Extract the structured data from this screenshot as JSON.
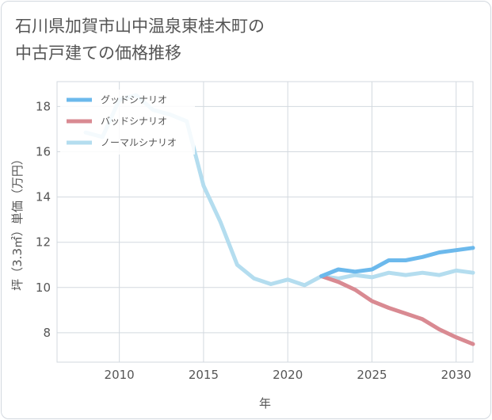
{
  "title_lines": [
    "石川県加賀市山中温泉東桂木町の",
    "中古戸建ての価格推移"
  ],
  "chart_data": {
    "type": "line",
    "xlabel": "年",
    "ylabel": "坪（3.3㎡）単価（万円）",
    "xlim": [
      2006.3,
      2031
    ],
    "ylim": [
      6.7,
      19.1
    ],
    "x_ticks": [
      2010,
      2015,
      2020,
      2025,
      2030
    ],
    "y_ticks": [
      8,
      10,
      12,
      14,
      16,
      18
    ],
    "grid": true,
    "legend_position": "top-left",
    "series": [
      {
        "name": "グッドシナリオ",
        "color": "#6cb9ec",
        "x": [
          2022,
          2023,
          2024,
          2025,
          2026,
          2027,
          2028,
          2029,
          2030,
          2031
        ],
        "y": [
          10.5,
          10.8,
          10.7,
          10.8,
          11.2,
          11.2,
          11.35,
          11.55,
          11.65,
          11.75
        ]
      },
      {
        "name": "バッドシナリオ",
        "color": "#d98a92",
        "x": [
          2022,
          2023,
          2024,
          2025,
          2026,
          2027,
          2028,
          2029,
          2030,
          2031
        ],
        "y": [
          10.5,
          10.25,
          9.9,
          9.4,
          9.1,
          8.85,
          8.6,
          8.15,
          7.8,
          7.5
        ]
      },
      {
        "name": "ノーマルシナリオ",
        "color": "#b4ddef",
        "x": [
          2008,
          2009,
          2010,
          2011,
          2012,
          2013,
          2014,
          2015,
          2016,
          2017,
          2018,
          2019,
          2020,
          2021,
          2022,
          2023,
          2024,
          2025,
          2026,
          2027,
          2028,
          2029,
          2030,
          2031
        ],
        "y": [
          16.85,
          16.65,
          18.3,
          18.5,
          17.85,
          17.65,
          17.35,
          14.5,
          12.9,
          11.0,
          10.4,
          10.15,
          10.35,
          10.1,
          10.5,
          10.4,
          10.55,
          10.45,
          10.65,
          10.55,
          10.65,
          10.55,
          10.75,
          10.65
        ]
      }
    ]
  }
}
